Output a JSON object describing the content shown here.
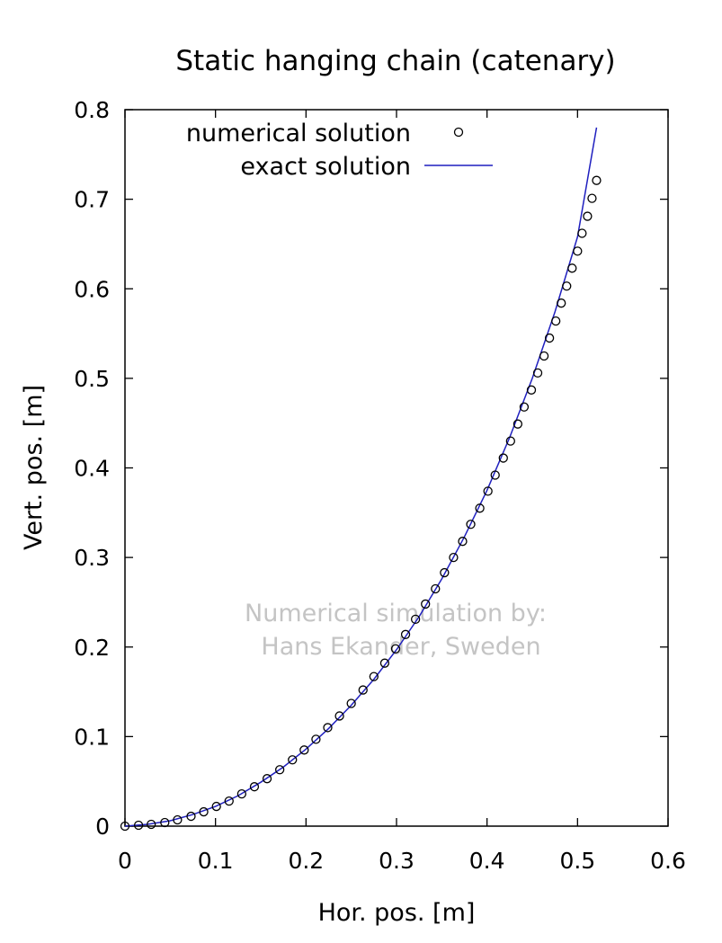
{
  "chart_data": {
    "type": "line",
    "title": "Static hanging chain (catenary)",
    "xlabel": "Hor. pos. [m]",
    "ylabel": "Vert. pos. [m]",
    "xlim": [
      0,
      0.6
    ],
    "ylim": [
      0,
      0.8
    ],
    "xticks": [
      "0",
      "0.1",
      "0.2",
      "0.3",
      "0.4",
      "0.5",
      "0.6"
    ],
    "yticks": [
      "0",
      "0.1",
      "0.2",
      "0.3",
      "0.4",
      "0.5",
      "0.6",
      "0.7",
      "0.8"
    ],
    "grid": false,
    "legend_position": "top",
    "watermark": [
      "Numerical simulation by:",
      "Hans Ekander, Sweden"
    ],
    "series": [
      {
        "name": "numerical solution",
        "style": "markers",
        "marker": "open-circle",
        "color": "#000000",
        "x": [
          0.0,
          0.015,
          0.029,
          0.044,
          0.058,
          0.073,
          0.087,
          0.101,
          0.115,
          0.129,
          0.143,
          0.157,
          0.171,
          0.185,
          0.198,
          0.211,
          0.224,
          0.237,
          0.25,
          0.263,
          0.275,
          0.287,
          0.299,
          0.31,
          0.321,
          0.332,
          0.343,
          0.353,
          0.363,
          0.373,
          0.382,
          0.392,
          0.401,
          0.409,
          0.418,
          0.426,
          0.434,
          0.441,
          0.449,
          0.456,
          0.463,
          0.469,
          0.476,
          0.482,
          0.488,
          0.494,
          0.5,
          0.505,
          0.511,
          0.516,
          0.521
        ],
        "y": [
          0.0,
          0.001,
          0.002,
          0.004,
          0.007,
          0.011,
          0.016,
          0.022,
          0.028,
          0.036,
          0.044,
          0.053,
          0.063,
          0.074,
          0.085,
          0.097,
          0.11,
          0.123,
          0.137,
          0.152,
          0.167,
          0.182,
          0.198,
          0.214,
          0.231,
          0.248,
          0.265,
          0.283,
          0.3,
          0.318,
          0.337,
          0.355,
          0.374,
          0.392,
          0.411,
          0.43,
          0.449,
          0.468,
          0.487,
          0.506,
          0.525,
          0.545,
          0.564,
          0.584,
          0.603,
          0.623,
          0.642,
          0.662,
          0.681,
          0.701,
          0.721
        ]
      },
      {
        "name": "exact solution",
        "style": "line",
        "color": "#1f1fbf",
        "x": [
          0.0,
          0.025,
          0.05,
          0.075,
          0.1,
          0.125,
          0.15,
          0.175,
          0.2,
          0.225,
          0.25,
          0.275,
          0.3,
          0.325,
          0.35,
          0.375,
          0.4,
          0.425,
          0.45,
          0.475,
          0.5,
          0.521
        ],
        "y": [
          0.0,
          0.002,
          0.006,
          0.013,
          0.022,
          0.034,
          0.049,
          0.066,
          0.086,
          0.109,
          0.135,
          0.164,
          0.197,
          0.234,
          0.276,
          0.323,
          0.375,
          0.434,
          0.5,
          0.574,
          0.658,
          0.78
        ]
      }
    ]
  }
}
